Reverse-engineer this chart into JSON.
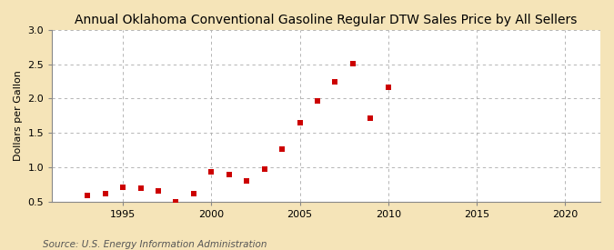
{
  "title": "Annual Oklahoma Conventional Gasoline Regular DTW Sales Price by All Sellers",
  "ylabel": "Dollars per Gallon",
  "source": "Source: U.S. Energy Information Administration",
  "figure_bg_color": "#f5e4b8",
  "plot_bg_color": "#ffffff",
  "x_data": [
    1993,
    1994,
    1995,
    1996,
    1997,
    1998,
    1999,
    2000,
    2001,
    2002,
    2003,
    2004,
    2005,
    2006,
    2007,
    2008,
    2009,
    2010
  ],
  "y_data": [
    0.59,
    0.61,
    0.71,
    0.7,
    0.66,
    0.5,
    0.61,
    0.93,
    0.9,
    0.8,
    0.97,
    1.26,
    1.65,
    1.96,
    2.25,
    2.51,
    1.71,
    2.17
  ],
  "marker_color": "#cc0000",
  "marker": "s",
  "marker_size": 4,
  "xlim": [
    1991,
    2022
  ],
  "ylim": [
    0.5,
    3.0
  ],
  "xticks": [
    1995,
    2000,
    2005,
    2010,
    2015,
    2020
  ],
  "yticks": [
    0.5,
    1.0,
    1.5,
    2.0,
    2.5,
    3.0
  ],
  "grid_color": "#aaaaaa",
  "grid_linestyle": "--",
  "title_fontsize": 10,
  "axis_label_fontsize": 8,
  "tick_fontsize": 8,
  "source_fontsize": 7.5
}
